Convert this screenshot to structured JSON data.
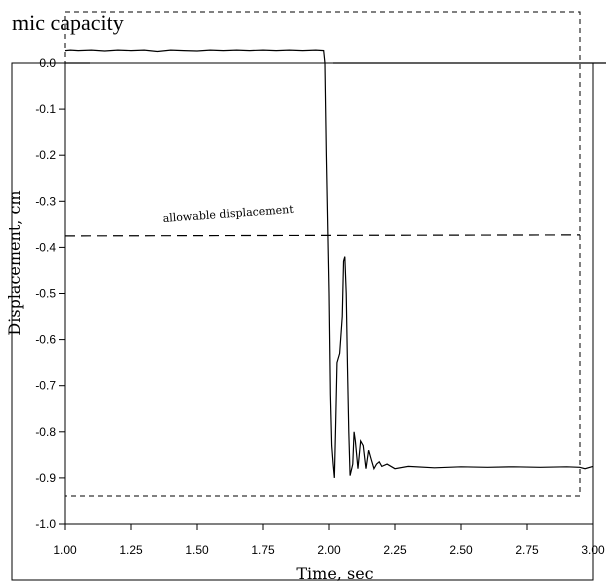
{
  "caption_fragment": "mic capacity",
  "chart_data": {
    "type": "line",
    "xlabel": "Time, sec",
    "ylabel": "Displacement, cm",
    "xlim": [
      1.0,
      3.0
    ],
    "ylim": [
      -1.0,
      0.0
    ],
    "xticks": [
      "1.00",
      "1.25",
      "1.50",
      "1.75",
      "2.00",
      "2.25",
      "2.50",
      "2.75",
      "3.00"
    ],
    "yticks": [
      "0.0",
      "-0.1",
      "-0.2",
      "-0.3",
      "-0.4",
      "-0.5",
      "-0.6",
      "-0.7",
      "-0.8",
      "-0.9",
      "-1.0"
    ],
    "grid": false,
    "annotations": [
      {
        "text": "allowable displacement",
        "y": -0.375
      }
    ],
    "series": [
      {
        "x": [
          1.0,
          1.02,
          1.05,
          1.1,
          1.15,
          1.2,
          1.25,
          1.3,
          1.35,
          1.4,
          1.45,
          1.5,
          1.55,
          1.6,
          1.65,
          1.7,
          1.75,
          1.8,
          1.85,
          1.9,
          1.95,
          1.98,
          1.985,
          1.99,
          2.0,
          2.005,
          2.01,
          2.015,
          2.02,
          2.025,
          2.03,
          2.04,
          2.05,
          2.055,
          2.06,
          2.065,
          2.07,
          2.075,
          2.08,
          2.09,
          2.095,
          2.1,
          2.11,
          2.12,
          2.13,
          2.14,
          2.15,
          2.16,
          2.17,
          2.18,
          2.19,
          2.2,
          2.22,
          2.25,
          2.3,
          2.4,
          2.5,
          2.6,
          2.7,
          2.8,
          2.9,
          2.95,
          2.97,
          3.0
        ],
        "y": [
          0.027,
          0.028,
          0.027,
          0.028,
          0.026,
          0.028,
          0.027,
          0.028,
          0.025,
          0.028,
          0.027,
          0.026,
          0.028,
          0.027,
          0.028,
          0.027,
          0.028,
          0.027,
          0.028,
          0.027,
          0.028,
          0.027,
          0.0,
          -0.2,
          -0.5,
          -0.72,
          -0.83,
          -0.87,
          -0.9,
          -0.78,
          -0.65,
          -0.63,
          -0.55,
          -0.43,
          -0.42,
          -0.5,
          -0.66,
          -0.8,
          -0.895,
          -0.87,
          -0.8,
          -0.82,
          -0.88,
          -0.82,
          -0.83,
          -0.88,
          -0.84,
          -0.86,
          -0.88,
          -0.87,
          -0.865,
          -0.875,
          -0.87,
          -0.88,
          -0.875,
          -0.878,
          -0.876,
          -0.877,
          -0.876,
          -0.877,
          -0.876,
          -0.877,
          -0.88,
          -0.875
        ]
      }
    ]
  }
}
